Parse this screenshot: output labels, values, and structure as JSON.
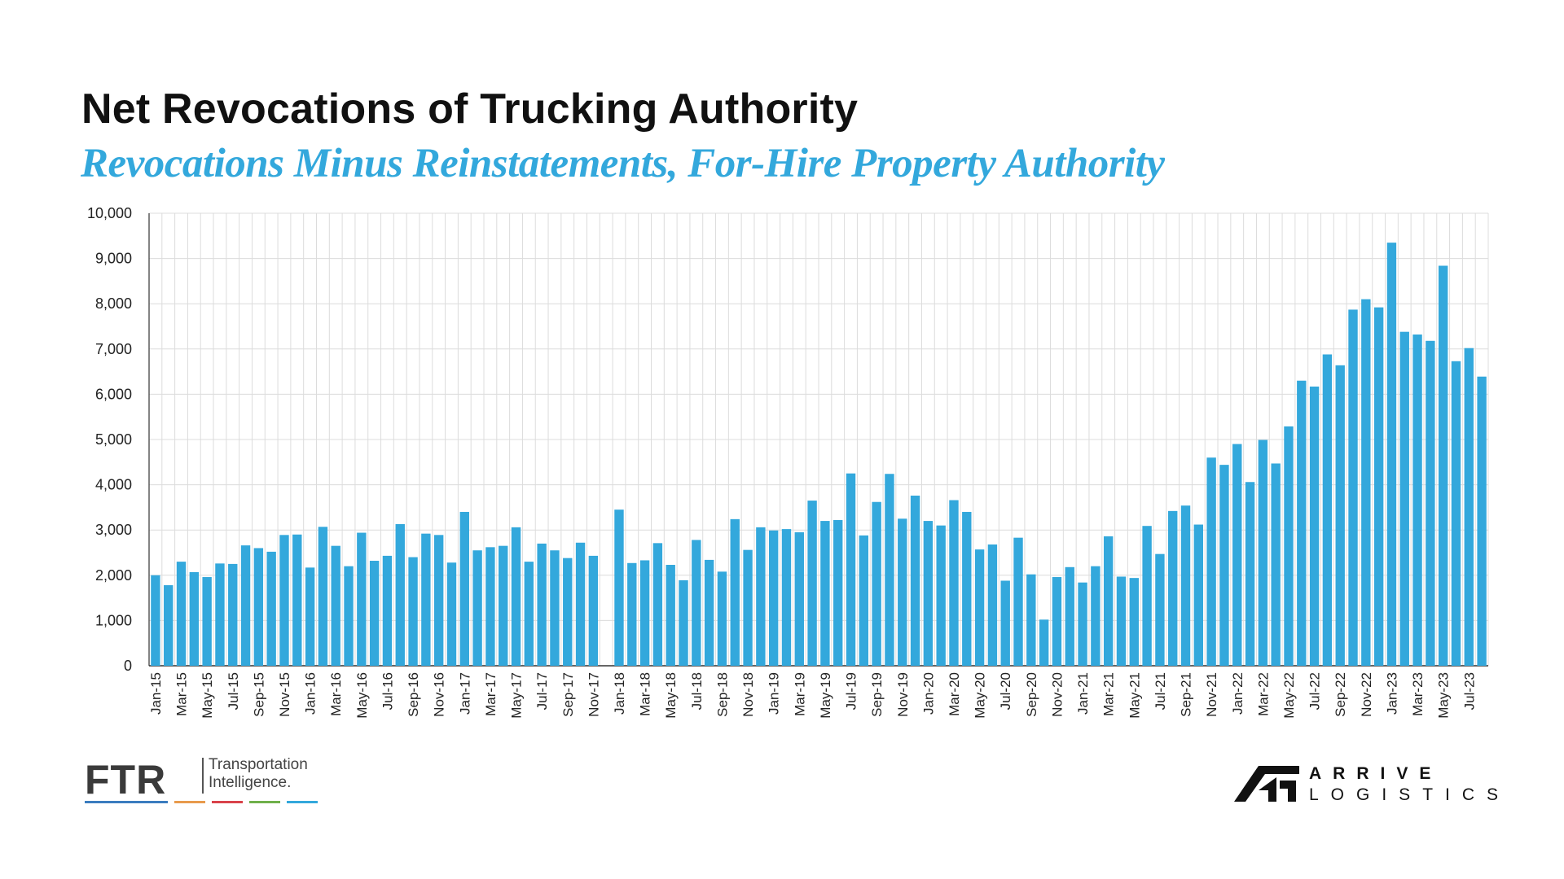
{
  "title": "Net Revocations of Trucking Authority",
  "subtitle": "Revocations Minus Reinstatements, For-Hire Property Authority",
  "colors": {
    "bar": "#33a8dc",
    "subtitle": "#33a8dc",
    "grid": "#dcdcdc",
    "axis": "#333333"
  },
  "logos": {
    "ftr": {
      "mark": "FTR",
      "tagline_1": "Transportation",
      "tagline_2": "Intelligence.",
      "stripe_colors": [
        "#3a7cbf",
        "#e89a4c",
        "#d9434a",
        "#6fb04a",
        "#33a8dc"
      ]
    },
    "arrive": {
      "line1": "ARRIVE",
      "line2": "LOGISTICS",
      "icon": "arrive-a-mark-icon"
    }
  },
  "chart_data": {
    "type": "bar",
    "ylim": [
      0,
      10000
    ],
    "yticks": [
      0,
      1000,
      2000,
      3000,
      4000,
      5000,
      6000,
      7000,
      8000,
      9000,
      10000
    ],
    "ytick_labels": [
      "0",
      "1,000",
      "2,000",
      "3,000",
      "4,000",
      "5,000",
      "6,000",
      "7,000",
      "8,000",
      "9,000",
      "10,000"
    ],
    "grid": true,
    "categories": [
      "Jan-15",
      "Feb-15",
      "Mar-15",
      "Apr-15",
      "May-15",
      "Jun-15",
      "Jul-15",
      "Aug-15",
      "Sep-15",
      "Oct-15",
      "Nov-15",
      "Dec-15",
      "Jan-16",
      "Feb-16",
      "Mar-16",
      "Apr-16",
      "May-16",
      "Jun-16",
      "Jul-16",
      "Aug-16",
      "Sep-16",
      "Oct-16",
      "Nov-16",
      "Dec-16",
      "Jan-17",
      "Feb-17",
      "Mar-17",
      "Apr-17",
      "May-17",
      "Jun-17",
      "Jul-17",
      "Aug-17",
      "Sep-17",
      "Oct-17",
      "Nov-17",
      "Dec-17",
      "Jan-18",
      "Feb-18",
      "Mar-18",
      "Apr-18",
      "May-18",
      "Jun-18",
      "Jul-18",
      "Aug-18",
      "Sep-18",
      "Oct-18",
      "Nov-18",
      "Dec-18",
      "Jan-19",
      "Feb-19",
      "Mar-19",
      "Apr-19",
      "May-19",
      "Jun-19",
      "Jul-19",
      "Aug-19",
      "Sep-19",
      "Oct-19",
      "Nov-19",
      "Dec-19",
      "Jan-20",
      "Feb-20",
      "Mar-20",
      "Apr-20",
      "May-20",
      "Jun-20",
      "Jul-20",
      "Aug-20",
      "Sep-20",
      "Oct-20",
      "Nov-20",
      "Dec-20",
      "Jan-21",
      "Feb-21",
      "Mar-21",
      "Apr-21",
      "May-21",
      "Jun-21",
      "Jul-21",
      "Aug-21",
      "Sep-21",
      "Oct-21",
      "Nov-21",
      "Dec-21",
      "Jan-22",
      "Feb-22",
      "Mar-22",
      "Apr-22",
      "May-22",
      "Jun-22",
      "Jul-22",
      "Aug-22",
      "Sep-22",
      "Oct-22",
      "Nov-22",
      "Dec-22",
      "Jan-23",
      "Feb-23",
      "Mar-23",
      "Apr-23",
      "May-23",
      "Jun-23",
      "Jul-23",
      "Aug-23"
    ],
    "tick_labels_every": 2,
    "values": [
      2000,
      1780,
      2300,
      2070,
      1960,
      2260,
      2250,
      2660,
      2600,
      2520,
      2890,
      2900,
      2170,
      3070,
      2650,
      2200,
      2940,
      2320,
      2430,
      3130,
      2400,
      2920,
      2890,
      2280,
      3400,
      2550,
      2620,
      2650,
      3060,
      2300,
      2700,
      2550,
      2380,
      2720,
      2430,
      0,
      3450,
      2270,
      2330,
      2710,
      2230,
      1890,
      2780,
      2340,
      2080,
      3240,
      2560,
      3060,
      2990,
      3020,
      2950,
      3650,
      3200,
      3220,
      4250,
      2880,
      3620,
      4240,
      3250,
      3760,
      3200,
      3100,
      3660,
      3400,
      2570,
      2680,
      1880,
      2830,
      2020,
      1020,
      1960,
      2180,
      1840,
      2200,
      2860,
      1970,
      1940,
      3090,
      2470,
      3420,
      3540,
      3120,
      4600,
      4440,
      4900,
      4060,
      4990,
      4470,
      5290,
      6300,
      6170,
      6880,
      6640,
      7870,
      8100,
      7920,
      9350,
      7380,
      7320,
      7180,
      8840,
      6730,
      7020,
      6390
    ]
  }
}
